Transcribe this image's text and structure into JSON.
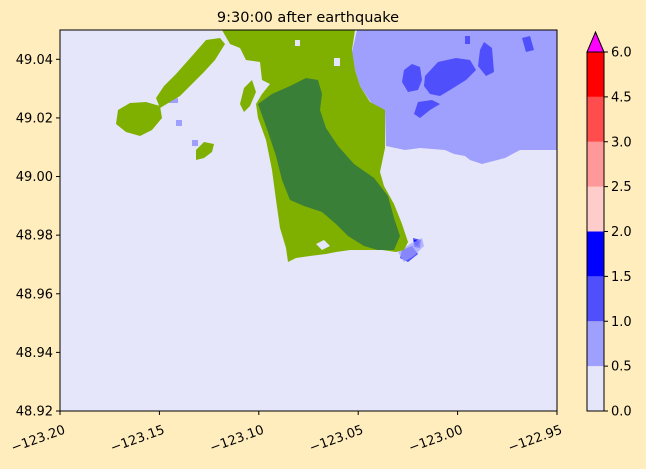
{
  "chart_data": {
    "type": "heatmap",
    "title": "9:30:00 after earthquake",
    "xlim": [
      -123.2,
      -122.95
    ],
    "ylim": [
      48.92,
      49.05
    ],
    "x_ticks": [
      {
        "value": -123.2,
        "label": "−123.20"
      },
      {
        "value": -123.15,
        "label": "−123.15"
      },
      {
        "value": -123.1,
        "label": "−123.10"
      },
      {
        "value": -123.05,
        "label": "−123.05"
      },
      {
        "value": -123.0,
        "label": "−123.00"
      },
      {
        "value": -122.95,
        "label": "−122.95"
      }
    ],
    "y_ticks": [
      {
        "value": 48.92,
        "label": "48.92"
      },
      {
        "value": 48.94,
        "label": "48.94"
      },
      {
        "value": 48.96,
        "label": "48.96"
      },
      {
        "value": 48.98,
        "label": "48.98"
      },
      {
        "value": 49.0,
        "label": "49.00"
      },
      {
        "value": 49.02,
        "label": "49.02"
      },
      {
        "value": 49.04,
        "label": "49.04"
      }
    ],
    "colorbar": {
      "levels": [
        0.0,
        0.5,
        1.0,
        1.5,
        2.0,
        2.5,
        3.0,
        4.5,
        6.0
      ],
      "tick_labels": [
        "0.0",
        "0.5",
        "1.0",
        "1.5",
        "2.0",
        "2.5",
        "3.0",
        "4.5",
        "6.0"
      ],
      "colors": [
        "#e6e6fa",
        "#9f9ffd",
        "#4f4ffc",
        "#0000ff",
        "#ffcccc",
        "#ff9999",
        "#ff4d4d",
        "#ff0000"
      ],
      "extend_color": "#ff00ff"
    },
    "land_colors": {
      "light": "#7fb000",
      "dark": "#3a7f38"
    },
    "regions": [
      {
        "name": "deep-water",
        "level": 0.25
      },
      {
        "name": "flood-0.5-1.0",
        "level": 0.75
      },
      {
        "name": "flood-1.0-1.5",
        "level": 1.25
      },
      {
        "name": "flood-1.5-2.0",
        "level": 1.75
      },
      {
        "name": "land-light",
        "level": null
      },
      {
        "name": "land-dark",
        "level": null
      }
    ]
  }
}
